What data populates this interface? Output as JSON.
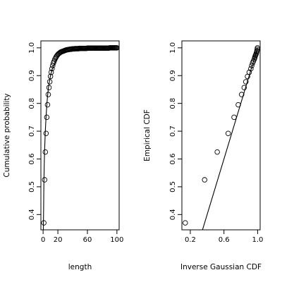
{
  "chart_data": [
    {
      "type": "scatter",
      "xlabel": "length",
      "ylabel": "Cumulative probability",
      "xlim": [
        -3,
        103
      ],
      "ylim": [
        0.345,
        1.025
      ],
      "x_ticks": [
        0,
        20,
        60,
        100
      ],
      "y_ticks": [
        0.4,
        0.5,
        0.6,
        0.7,
        0.8,
        0.9,
        1.0
      ],
      "y_tick_labels": [
        "0.4",
        "0.5",
        "0.6",
        "0.7",
        "0.8",
        "0.9",
        "1.0"
      ],
      "points": {
        "x": [
          1,
          2,
          3,
          4,
          5,
          6,
          7,
          8,
          9,
          10,
          11,
          12,
          13,
          14,
          15,
          16,
          17,
          18,
          19,
          20,
          21,
          22,
          23,
          24,
          25,
          26,
          27,
          28,
          29,
          30,
          31,
          32,
          33,
          34,
          35,
          36,
          37,
          38,
          39,
          40,
          41,
          42,
          43,
          44,
          45,
          46,
          47,
          48,
          49,
          50,
          51,
          52,
          53,
          54,
          55,
          56,
          57,
          58,
          59,
          60,
          61,
          62,
          63,
          64,
          65,
          66,
          67,
          68,
          69,
          70,
          71,
          72,
          73,
          74,
          75,
          76,
          77,
          78,
          79,
          80,
          81,
          82,
          83,
          84,
          85,
          86,
          87,
          88,
          89,
          90,
          91,
          92,
          93,
          94,
          95,
          96,
          97,
          98,
          99,
          100
        ],
        "y": [
          0.37,
          0.525,
          0.625,
          0.692,
          0.75,
          0.795,
          0.832,
          0.857,
          0.878,
          0.897,
          0.912,
          0.925,
          0.936,
          0.945,
          0.952,
          0.959,
          0.964,
          0.969,
          0.973,
          0.976,
          0.979,
          0.981,
          0.983,
          0.985,
          0.986,
          0.987,
          0.988,
          0.989,
          0.99,
          0.991,
          0.992,
          0.993,
          0.993,
          0.994,
          0.994,
          0.995,
          0.995,
          0.995,
          0.996,
          0.996,
          0.996,
          0.996,
          0.997,
          0.997,
          0.997,
          0.997,
          0.997,
          0.997,
          0.998,
          0.998,
          0.998,
          0.998,
          0.998,
          0.998,
          0.998,
          0.998,
          0.998,
          0.998,
          0.998,
          0.999,
          0.999,
          0.999,
          0.999,
          0.999,
          0.999,
          0.999,
          0.999,
          0.999,
          0.999,
          0.999,
          0.999,
          0.999,
          0.999,
          0.999,
          0.999,
          0.999,
          0.999,
          0.999,
          0.999,
          0.999,
          0.999,
          0.999,
          0.999,
          0.999,
          0.999,
          0.999,
          0.999,
          0.999,
          0.999,
          1.0,
          1.0,
          1.0,
          1.0,
          1.0,
          1.0,
          1.0,
          1.0,
          1.0,
          1.0,
          1.0
        ]
      },
      "curve": {
        "x": [
          0.3,
          0.7,
          1,
          1.5,
          2,
          3,
          4,
          5,
          6,
          7,
          8,
          10,
          12,
          14,
          16,
          18,
          20,
          25,
          30,
          40,
          50,
          60,
          70,
          80,
          90,
          100
        ],
        "y": [
          0.345,
          0.42,
          0.5,
          0.575,
          0.63,
          0.7,
          0.752,
          0.793,
          0.826,
          0.851,
          0.871,
          0.9,
          0.92,
          0.936,
          0.948,
          0.958,
          0.966,
          0.979,
          0.986,
          0.993,
          0.996,
          0.998,
          0.999,
          0.9993,
          0.9996,
          0.9998
        ]
      }
    },
    {
      "type": "scatter",
      "xlabel": "Inverse Gaussian CDF",
      "ylabel": "Empirical CDF",
      "xlim": [
        0.1,
        1.03
      ],
      "ylim": [
        0.345,
        1.025
      ],
      "x_ticks": [
        0.2,
        0.6,
        1.0
      ],
      "x_tick_labels": [
        "0.2",
        "0.6",
        "1.0"
      ],
      "y_ticks": [
        0.4,
        0.5,
        0.6,
        0.7,
        0.8,
        0.9,
        1.0
      ],
      "y_tick_labels": [
        "0.4",
        "0.5",
        "0.6",
        "0.7",
        "0.8",
        "0.9",
        "1.0"
      ],
      "points": {
        "x": [
          0.14,
          0.37,
          0.52,
          0.65,
          0.72,
          0.77,
          0.81,
          0.84,
          0.86,
          0.88,
          0.9,
          0.92,
          0.93,
          0.94,
          0.95,
          0.96,
          0.965,
          0.97,
          0.975,
          0.98,
          0.985,
          0.99,
          0.993,
          0.996,
          0.998
        ],
        "y": [
          0.37,
          0.525,
          0.625,
          0.692,
          0.75,
          0.795,
          0.832,
          0.857,
          0.878,
          0.897,
          0.912,
          0.925,
          0.936,
          0.945,
          0.952,
          0.959,
          0.964,
          0.969,
          0.973,
          0.976,
          0.981,
          0.986,
          0.99,
          0.995,
          1.0
        ]
      },
      "reference_line": {
        "x": [
          0.345,
          1.0
        ],
        "y": [
          0.345,
          1.0
        ]
      }
    }
  ]
}
